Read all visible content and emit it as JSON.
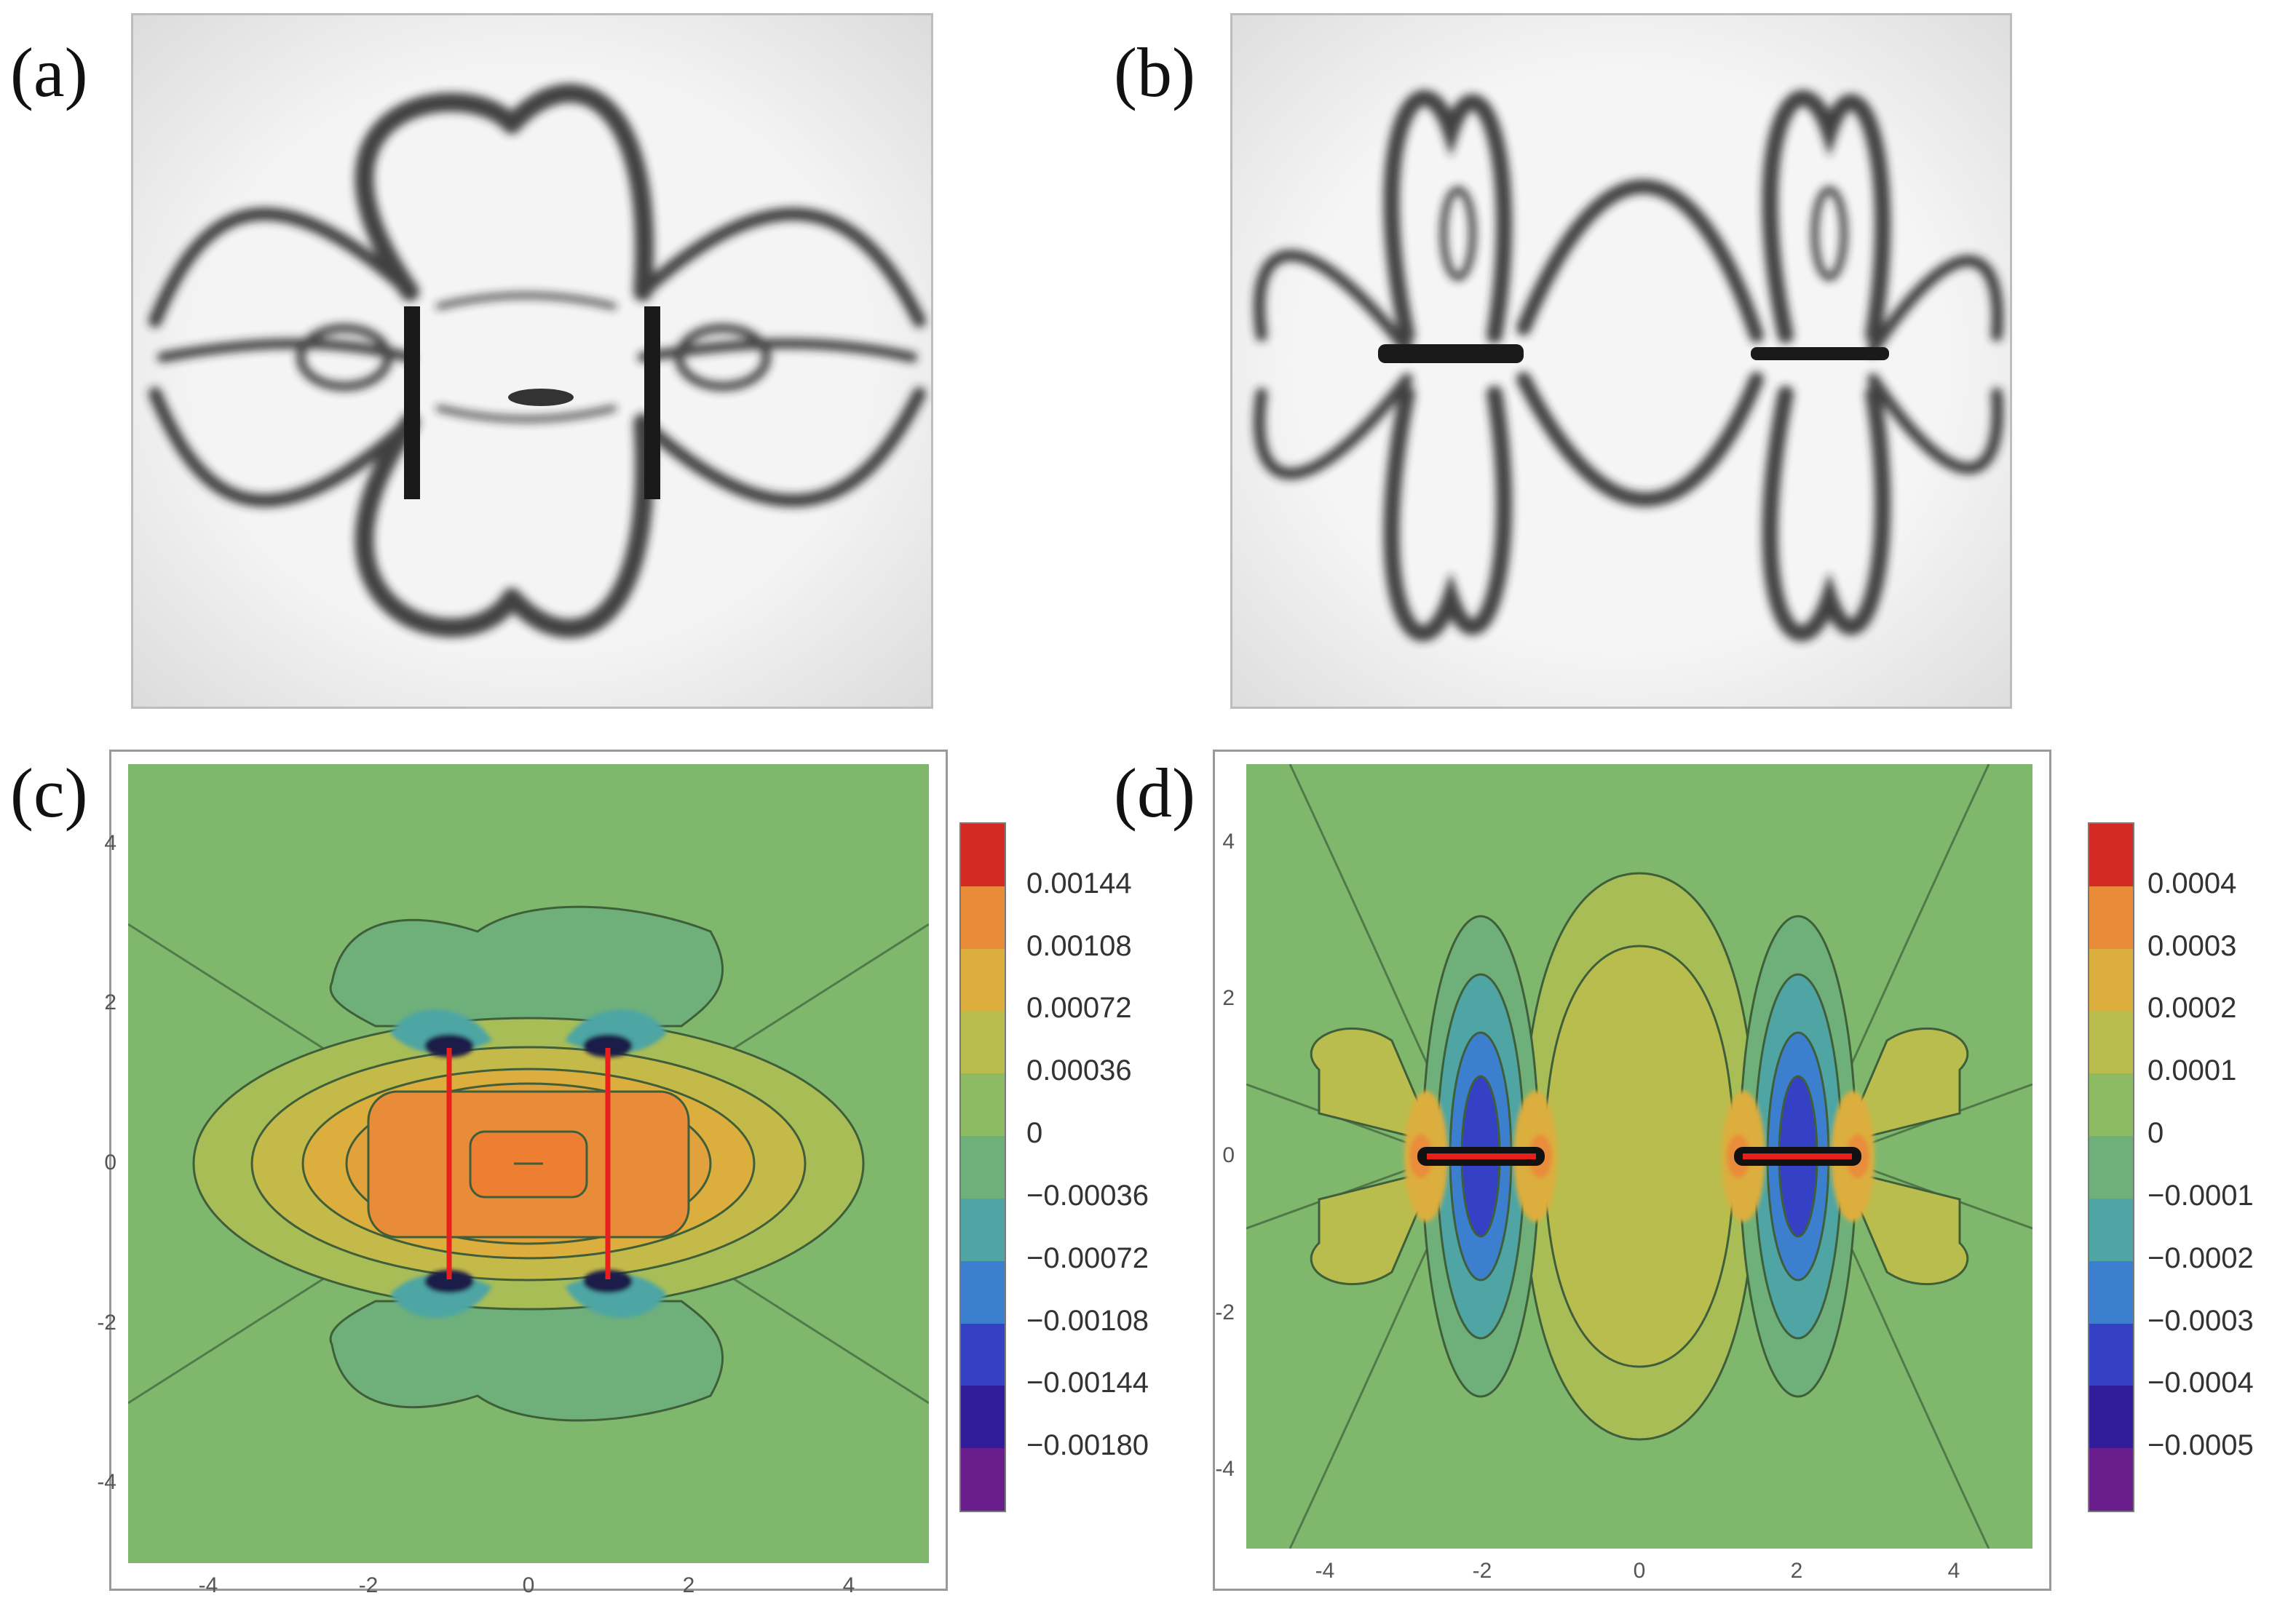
{
  "panels": {
    "a": {
      "label": "(a)"
    },
    "b": {
      "label": "(b)"
    },
    "c": {
      "label": "(c)"
    },
    "d": {
      "label": "(d)"
    }
  },
  "chart_data": [
    {
      "panel": "(c)",
      "type": "heatmap",
      "x_ticks": [
        "-4",
        "-2",
        "0",
        "2",
        "4"
      ],
      "y_ticks": [
        "4",
        "2",
        "0",
        "-2",
        "-4"
      ],
      "xlim": [
        -5,
        5
      ],
      "ylim": [
        -5,
        5
      ],
      "colorbar_labels": [
        "0.00144",
        "0.00108",
        "0.00072",
        "0.00036",
        "0",
        "−0.00036",
        "−0.00072",
        "−0.00108",
        "−0.00144",
        "−0.00180"
      ],
      "colorbar_colors": [
        "#d42a24",
        "#e98c3a",
        "#dcae3e",
        "#b9bd4e",
        "#8dbb64",
        "#6fb07a",
        "#4ea5a4",
        "#3d7fcf",
        "#3541c4",
        "#311c9a",
        "#6a1d8c"
      ],
      "cracks": [
        {
          "x": -1,
          "y1": -1,
          "y2": 1
        },
        {
          "x": 1,
          "y1": -1,
          "y2": 1
        }
      ]
    },
    {
      "panel": "(d)",
      "type": "heatmap",
      "x_ticks": [
        "-4",
        "-2",
        "0",
        "2",
        "4"
      ],
      "y_ticks": [
        "4",
        "2",
        "0",
        "-2",
        "-4"
      ],
      "xlim": [
        -5,
        5
      ],
      "ylim": [
        -5,
        5
      ],
      "colorbar_labels": [
        "0.0004",
        "0.0003",
        "0.0002",
        "0.0001",
        "0",
        "−0.0001",
        "−0.0002",
        "−0.0003",
        "−0.0004",
        "−0.0005"
      ],
      "colorbar_colors": [
        "#d42a24",
        "#e98c3a",
        "#dcae3e",
        "#b9bd4e",
        "#8dbb64",
        "#6fb07a",
        "#4ea5a4",
        "#3d7fcf",
        "#3541c4",
        "#311c9a",
        "#6a1d8c"
      ],
      "cracks": [
        {
          "y": 0,
          "x1": -2.8,
          "x2": -1.2
        },
        {
          "y": 0,
          "x1": 1.2,
          "x2": 2.8
        }
      ]
    }
  ]
}
